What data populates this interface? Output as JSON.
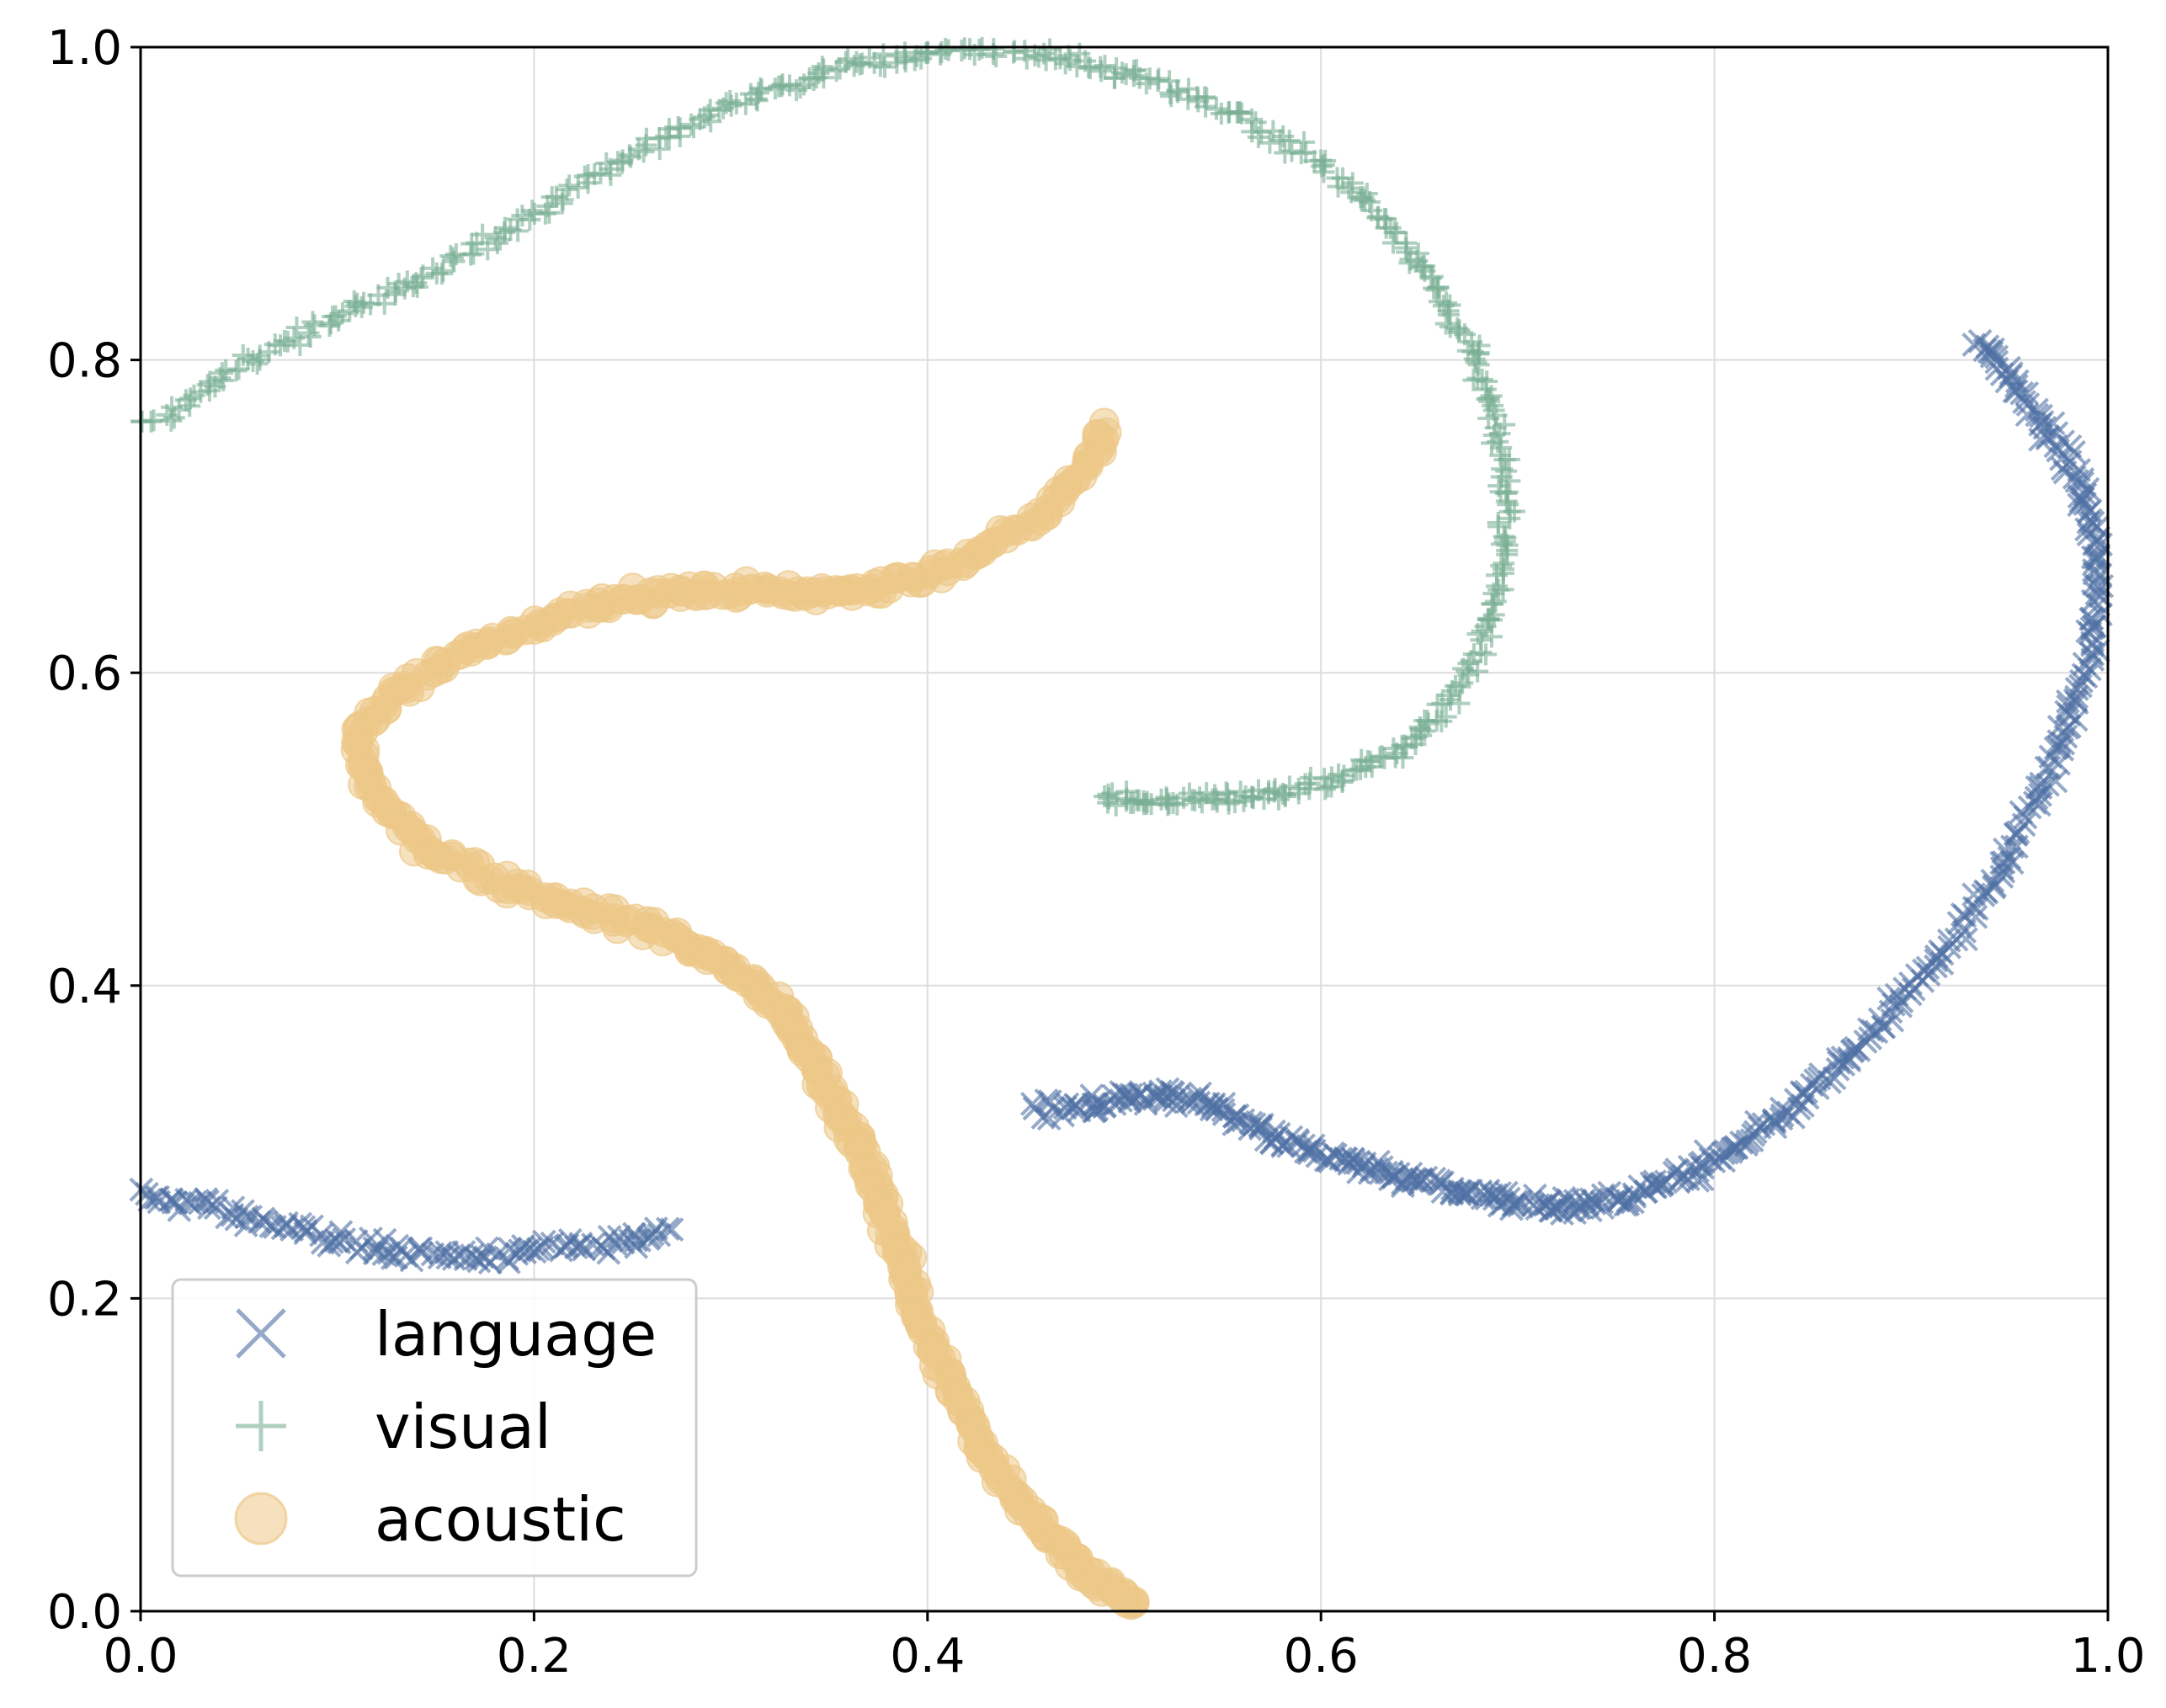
{
  "chart_data": {
    "type": "scatter",
    "title": "",
    "xlabel": "",
    "ylabel": "",
    "xlim": [
      0,
      1
    ],
    "ylim": [
      0,
      1
    ],
    "xticks": [
      "0.0",
      "0.2",
      "0.4",
      "0.6",
      "0.8",
      "1.0"
    ],
    "yticks": [
      "0.0",
      "0.2",
      "0.4",
      "0.6",
      "0.8",
      "1.0"
    ],
    "grid": true,
    "legend_position": "lower-left",
    "series": [
      {
        "name": "language",
        "marker": "x",
        "color": "#4f6fa3",
        "segments": [
          [
            [
              0.0,
              0.265
            ],
            [
              0.03,
              0.26
            ],
            [
              0.06,
              0.25
            ],
            [
              0.09,
              0.24
            ],
            [
              0.12,
              0.232
            ],
            [
              0.15,
              0.228
            ],
            [
              0.18,
              0.227
            ],
            [
              0.21,
              0.23
            ],
            [
              0.24,
              0.236
            ],
            [
              0.27,
              0.244
            ]
          ],
          [
            [
              0.455,
              0.322
            ],
            [
              0.48,
              0.324
            ],
            [
              0.5,
              0.328
            ],
            [
              0.52,
              0.33
            ],
            [
              0.54,
              0.326
            ],
            [
              0.56,
              0.314
            ],
            [
              0.58,
              0.302
            ],
            [
              0.6,
              0.292
            ],
            [
              0.62,
              0.285
            ],
            [
              0.64,
              0.278
            ],
            [
              0.66,
              0.272
            ],
            [
              0.68,
              0.266
            ],
            [
              0.7,
              0.262
            ],
            [
              0.72,
              0.258
            ],
            [
              0.74,
              0.26
            ],
            [
              0.76,
              0.266
            ],
            [
              0.78,
              0.276
            ],
            [
              0.8,
              0.288
            ],
            [
              0.82,
              0.304
            ],
            [
              0.84,
              0.322
            ],
            [
              0.86,
              0.344
            ],
            [
              0.88,
              0.37
            ],
            [
              0.9,
              0.398
            ],
            [
              0.92,
              0.428
            ],
            [
              0.94,
              0.462
            ],
            [
              0.955,
              0.498
            ],
            [
              0.97,
              0.535
            ],
            [
              0.98,
              0.57
            ],
            [
              0.99,
              0.605
            ],
            [
              0.995,
              0.64
            ],
            [
              0.995,
              0.675
            ],
            [
              0.99,
              0.705
            ],
            [
              0.98,
              0.735
            ],
            [
              0.965,
              0.762
            ],
            [
              0.95,
              0.788
            ],
            [
              0.935,
              0.812
            ]
          ]
        ]
      },
      {
        "name": "visual",
        "marker": "+",
        "color": "#7aaf94",
        "segments": [
          [
            [
              0.0,
              0.755
            ],
            [
              0.03,
              0.78
            ],
            [
              0.06,
              0.802
            ],
            [
              0.09,
              0.822
            ],
            [
              0.12,
              0.84
            ],
            [
              0.15,
              0.858
            ],
            [
              0.18,
              0.878
            ],
            [
              0.21,
              0.902
            ],
            [
              0.24,
              0.925
            ],
            [
              0.27,
              0.946
            ],
            [
              0.3,
              0.962
            ],
            [
              0.33,
              0.976
            ],
            [
              0.36,
              0.988
            ],
            [
              0.39,
              0.995
            ],
            [
              0.42,
              0.998
            ],
            [
              0.45,
              0.997
            ],
            [
              0.48,
              0.99
            ],
            [
              0.51,
              0.98
            ],
            [
              0.54,
              0.966
            ],
            [
              0.57,
              0.948
            ],
            [
              0.6,
              0.925
            ],
            [
              0.625,
              0.9
            ],
            [
              0.645,
              0.872
            ],
            [
              0.66,
              0.842
            ],
            [
              0.675,
              0.81
            ],
            [
              0.685,
              0.776
            ],
            [
              0.692,
              0.74
            ],
            [
              0.695,
              0.702
            ],
            [
              0.692,
              0.664
            ],
            [
              0.685,
              0.626
            ],
            [
              0.672,
              0.594
            ],
            [
              0.655,
              0.566
            ],
            [
              0.635,
              0.546
            ],
            [
              0.61,
              0.533
            ],
            [
              0.585,
              0.526
            ],
            [
              0.56,
              0.522
            ],
            [
              0.535,
              0.52
            ],
            [
              0.51,
              0.52
            ],
            [
              0.49,
              0.521
            ]
          ]
        ]
      },
      {
        "name": "acoustic",
        "marker": "o",
        "color": "#edc888",
        "segments": [
          [
            [
              0.49,
              0.76
            ],
            [
              0.48,
              0.73
            ],
            [
              0.46,
              0.7
            ],
            [
              0.43,
              0.68
            ],
            [
              0.4,
              0.662
            ],
            [
              0.37,
              0.652
            ],
            [
              0.34,
              0.65
            ],
            [
              0.31,
              0.652
            ],
            [
              0.28,
              0.652
            ],
            [
              0.25,
              0.648
            ],
            [
              0.22,
              0.64
            ],
            [
              0.19,
              0.628
            ],
            [
              0.16,
              0.61
            ],
            [
              0.13,
              0.588
            ],
            [
              0.11,
              0.562
            ],
            [
              0.115,
              0.532
            ],
            [
              0.13,
              0.505
            ],
            [
              0.15,
              0.485
            ],
            [
              0.18,
              0.468
            ],
            [
              0.21,
              0.455
            ],
            [
              0.24,
              0.444
            ],
            [
              0.27,
              0.432
            ],
            [
              0.29,
              0.418
            ],
            [
              0.31,
              0.402
            ],
            [
              0.325,
              0.385
            ],
            [
              0.335,
              0.366
            ],
            [
              0.345,
              0.345
            ],
            [
              0.355,
              0.322
            ],
            [
              0.365,
              0.298
            ],
            [
              0.372,
              0.274
            ],
            [
              0.38,
              0.25
            ],
            [
              0.387,
              0.225
            ],
            [
              0.393,
              0.2
            ],
            [
              0.4,
              0.175
            ],
            [
              0.41,
              0.15
            ],
            [
              0.42,
              0.125
            ],
            [
              0.43,
              0.1
            ],
            [
              0.445,
              0.075
            ],
            [
              0.46,
              0.052
            ],
            [
              0.475,
              0.032
            ],
            [
              0.49,
              0.016
            ],
            [
              0.505,
              0.005
            ]
          ]
        ]
      }
    ]
  }
}
